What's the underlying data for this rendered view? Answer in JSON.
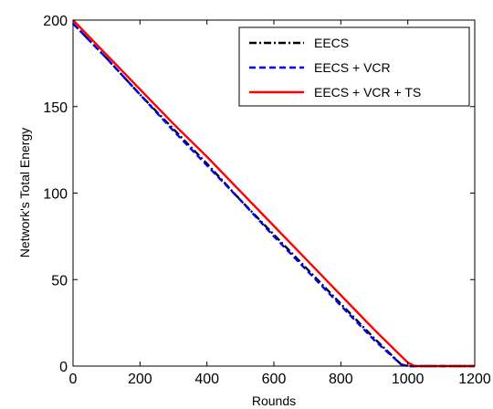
{
  "chart_data": {
    "type": "line",
    "title": "",
    "xlabel": "Rounds",
    "ylabel": "Network's Total Energy",
    "xlim": [
      0,
      1200
    ],
    "ylim": [
      0,
      200
    ],
    "xticks": [
      0,
      200,
      400,
      600,
      800,
      1000,
      1200
    ],
    "yticks": [
      0,
      50,
      100,
      150,
      200
    ],
    "grid": false,
    "legend_position": "top-right",
    "series": [
      {
        "name": "EECS",
        "color": "#000000",
        "style": "dashdot",
        "points": [
          [
            0,
            198
          ],
          [
            100,
            178
          ],
          [
            200,
            157
          ],
          [
            300,
            137
          ],
          [
            400,
            117
          ],
          [
            500,
            96
          ],
          [
            600,
            76
          ],
          [
            700,
            56
          ],
          [
            800,
            36
          ],
          [
            900,
            16
          ],
          [
            980,
            1
          ],
          [
            1000,
            0
          ],
          [
            1200,
            0
          ]
        ]
      },
      {
        "name": "EECS  + VCR",
        "color": "#0000ff",
        "style": "dashed",
        "points": [
          [
            0,
            198
          ],
          [
            100,
            178
          ],
          [
            200,
            157
          ],
          [
            300,
            136
          ],
          [
            400,
            116
          ],
          [
            500,
            96
          ],
          [
            600,
            75
          ],
          [
            700,
            55
          ],
          [
            800,
            35
          ],
          [
            900,
            15
          ],
          [
            980,
            1
          ],
          [
            1000,
            0
          ],
          [
            1200,
            0
          ]
        ]
      },
      {
        "name": "EECS + VCR + TS",
        "color": "#ff0000",
        "style": "solid",
        "points": [
          [
            0,
            200
          ],
          [
            100,
            180
          ],
          [
            200,
            160
          ],
          [
            300,
            140
          ],
          [
            400,
            121
          ],
          [
            500,
            101
          ],
          [
            600,
            81
          ],
          [
            700,
            61
          ],
          [
            800,
            41
          ],
          [
            900,
            21
          ],
          [
            1000,
            2
          ],
          [
            1020,
            0
          ],
          [
            1200,
            0
          ]
        ]
      }
    ]
  }
}
